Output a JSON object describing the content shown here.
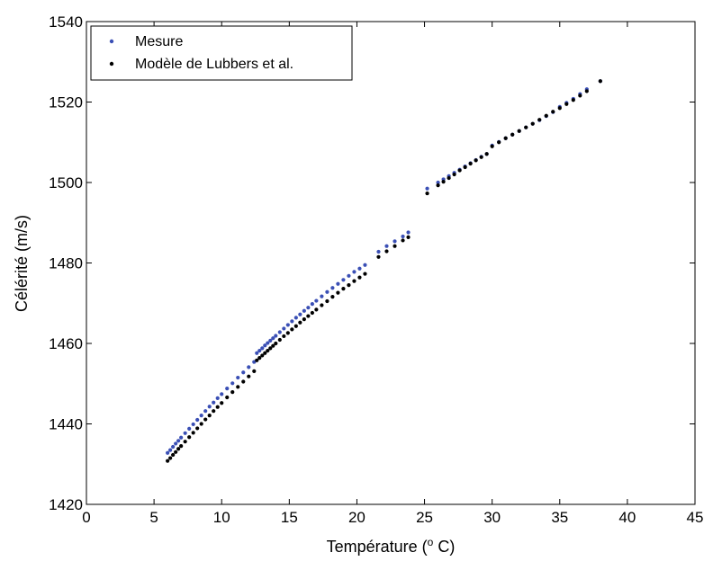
{
  "chart_data": {
    "type": "scatter",
    "title": "",
    "xlabel": "Température (",
    "xlabel_superscript": "o",
    "xlabel_suffix": " C)",
    "ylabel": "Célérité (m/s)",
    "xlim": [
      0,
      45
    ],
    "ylim": [
      1420,
      1540
    ],
    "xticks": [
      "0",
      "5",
      "10",
      "15",
      "20",
      "25",
      "30",
      "35",
      "40",
      "45"
    ],
    "yticks": [
      "1420",
      "1440",
      "1460",
      "1480",
      "1500",
      "1520",
      "1540"
    ],
    "grid": false,
    "legend_position": "top-left",
    "colors": {
      "mesure": "#3a4fb5",
      "model": "#000000"
    },
    "series": [
      {
        "name": "Mesure",
        "points": [
          [
            6.0,
            1432.8
          ],
          [
            6.2,
            1433.5
          ],
          [
            6.4,
            1434.3
          ],
          [
            6.6,
            1435.1
          ],
          [
            6.8,
            1435.8
          ],
          [
            7.0,
            1436.6
          ],
          [
            7.3,
            1437.7
          ],
          [
            7.6,
            1438.8
          ],
          [
            7.9,
            1439.9
          ],
          [
            8.2,
            1441.0
          ],
          [
            8.5,
            1442.1
          ],
          [
            8.8,
            1443.2
          ],
          [
            9.1,
            1444.3
          ],
          [
            9.4,
            1445.3
          ],
          [
            9.7,
            1446.4
          ],
          [
            10.0,
            1447.4
          ],
          [
            10.4,
            1448.8
          ],
          [
            10.8,
            1450.1
          ],
          [
            11.2,
            1451.5
          ],
          [
            11.6,
            1452.8
          ],
          [
            12.0,
            1454.1
          ],
          [
            12.4,
            1455.4
          ],
          [
            12.6,
            1457.6
          ],
          [
            12.8,
            1458.2
          ],
          [
            13.0,
            1458.8
          ],
          [
            13.2,
            1459.5
          ],
          [
            13.4,
            1460.1
          ],
          [
            13.6,
            1460.7
          ],
          [
            13.8,
            1461.3
          ],
          [
            14.0,
            1461.9
          ],
          [
            14.3,
            1462.8
          ],
          [
            14.6,
            1463.7
          ],
          [
            14.9,
            1464.6
          ],
          [
            15.2,
            1465.5
          ],
          [
            15.5,
            1466.4
          ],
          [
            15.8,
            1467.2
          ],
          [
            16.1,
            1468.1
          ],
          [
            16.4,
            1468.9
          ],
          [
            16.7,
            1469.8
          ],
          [
            17.0,
            1470.6
          ],
          [
            17.4,
            1471.7
          ],
          [
            17.8,
            1472.8
          ],
          [
            18.2,
            1473.8
          ],
          [
            18.6,
            1474.8
          ],
          [
            19.0,
            1475.8
          ],
          [
            19.4,
            1476.8
          ],
          [
            19.8,
            1477.8
          ],
          [
            20.2,
            1478.6
          ],
          [
            20.6,
            1479.5
          ],
          [
            21.6,
            1482.8
          ],
          [
            22.2,
            1484.2
          ],
          [
            22.8,
            1485.4
          ],
          [
            23.4,
            1486.6
          ],
          [
            23.8,
            1487.6
          ],
          [
            25.2,
            1498.5
          ],
          [
            26.0,
            1500.0
          ],
          [
            26.4,
            1500.8
          ],
          [
            26.8,
            1501.6
          ],
          [
            27.2,
            1502.4
          ],
          [
            27.6,
            1503.2
          ],
          [
            28.0,
            1504.0
          ],
          [
            28.4,
            1504.8
          ],
          [
            28.8,
            1505.6
          ],
          [
            29.2,
            1506.4
          ],
          [
            29.6,
            1507.1
          ],
          [
            30.0,
            1509.2
          ],
          [
            30.5,
            1510.1
          ],
          [
            31.0,
            1511.0
          ],
          [
            31.5,
            1511.9
          ],
          [
            32.0,
            1512.8
          ],
          [
            32.5,
            1513.7
          ],
          [
            33.0,
            1514.6
          ],
          [
            33.5,
            1515.5
          ],
          [
            34.0,
            1516.5
          ],
          [
            34.5,
            1517.5
          ],
          [
            35.0,
            1518.8
          ],
          [
            35.5,
            1519.8
          ],
          [
            36.0,
            1520.8
          ],
          [
            36.5,
            1522.0
          ],
          [
            37.0,
            1523.2
          ],
          [
            38.0,
            1525.2
          ]
        ]
      },
      {
        "name": "Modèle de Lubbers et al.",
        "points": [
          [
            6.0,
            1430.8
          ],
          [
            6.2,
            1431.5
          ],
          [
            6.4,
            1432.3
          ],
          [
            6.6,
            1433.0
          ],
          [
            6.8,
            1433.8
          ],
          [
            7.0,
            1434.5
          ],
          [
            7.3,
            1435.6
          ],
          [
            7.6,
            1436.7
          ],
          [
            7.9,
            1437.8
          ],
          [
            8.2,
            1438.9
          ],
          [
            8.5,
            1440.0
          ],
          [
            8.8,
            1441.1
          ],
          [
            9.1,
            1442.1
          ],
          [
            9.4,
            1443.2
          ],
          [
            9.7,
            1444.2
          ],
          [
            10.0,
            1445.2
          ],
          [
            10.4,
            1446.6
          ],
          [
            10.8,
            1447.9
          ],
          [
            11.2,
            1449.2
          ],
          [
            11.6,
            1450.5
          ],
          [
            12.0,
            1451.8
          ],
          [
            12.4,
            1453.1
          ],
          [
            12.6,
            1455.8
          ],
          [
            12.8,
            1456.4
          ],
          [
            13.0,
            1457.0
          ],
          [
            13.2,
            1457.6
          ],
          [
            13.4,
            1458.2
          ],
          [
            13.6,
            1458.8
          ],
          [
            13.8,
            1459.4
          ],
          [
            14.0,
            1460.0
          ],
          [
            14.3,
            1460.9
          ],
          [
            14.6,
            1461.8
          ],
          [
            14.9,
            1462.6
          ],
          [
            15.2,
            1463.5
          ],
          [
            15.5,
            1464.3
          ],
          [
            15.8,
            1465.2
          ],
          [
            16.1,
            1466.0
          ],
          [
            16.4,
            1466.8
          ],
          [
            16.7,
            1467.6
          ],
          [
            17.0,
            1468.4
          ],
          [
            17.4,
            1469.5
          ],
          [
            17.8,
            1470.5
          ],
          [
            18.2,
            1471.6
          ],
          [
            18.6,
            1472.6
          ],
          [
            19.0,
            1473.6
          ],
          [
            19.4,
            1474.5
          ],
          [
            19.8,
            1475.5
          ],
          [
            20.2,
            1476.4
          ],
          [
            20.6,
            1477.3
          ],
          [
            21.6,
            1481.5
          ],
          [
            22.2,
            1482.9
          ],
          [
            22.8,
            1484.2
          ],
          [
            23.4,
            1485.6
          ],
          [
            23.8,
            1486.4
          ],
          [
            25.2,
            1497.3
          ],
          [
            26.0,
            1499.3
          ],
          [
            26.4,
            1500.2
          ],
          [
            26.8,
            1501.1
          ],
          [
            27.2,
            1502.0
          ],
          [
            27.6,
            1503.0
          ],
          [
            28.0,
            1503.8
          ],
          [
            28.4,
            1504.7
          ],
          [
            28.8,
            1505.5
          ],
          [
            29.2,
            1506.3
          ],
          [
            29.6,
            1507.1
          ],
          [
            30.0,
            1509.0
          ],
          [
            30.5,
            1510.0
          ],
          [
            31.0,
            1511.0
          ],
          [
            31.5,
            1511.9
          ],
          [
            32.0,
            1512.8
          ],
          [
            32.5,
            1513.7
          ],
          [
            33.0,
            1514.6
          ],
          [
            33.5,
            1515.6
          ],
          [
            34.0,
            1516.6
          ],
          [
            34.5,
            1517.6
          ],
          [
            35.0,
            1518.5
          ],
          [
            35.5,
            1519.5
          ],
          [
            36.0,
            1520.5
          ],
          [
            36.5,
            1521.6
          ],
          [
            37.0,
            1522.7
          ],
          [
            38.0,
            1525.2
          ]
        ]
      }
    ]
  }
}
